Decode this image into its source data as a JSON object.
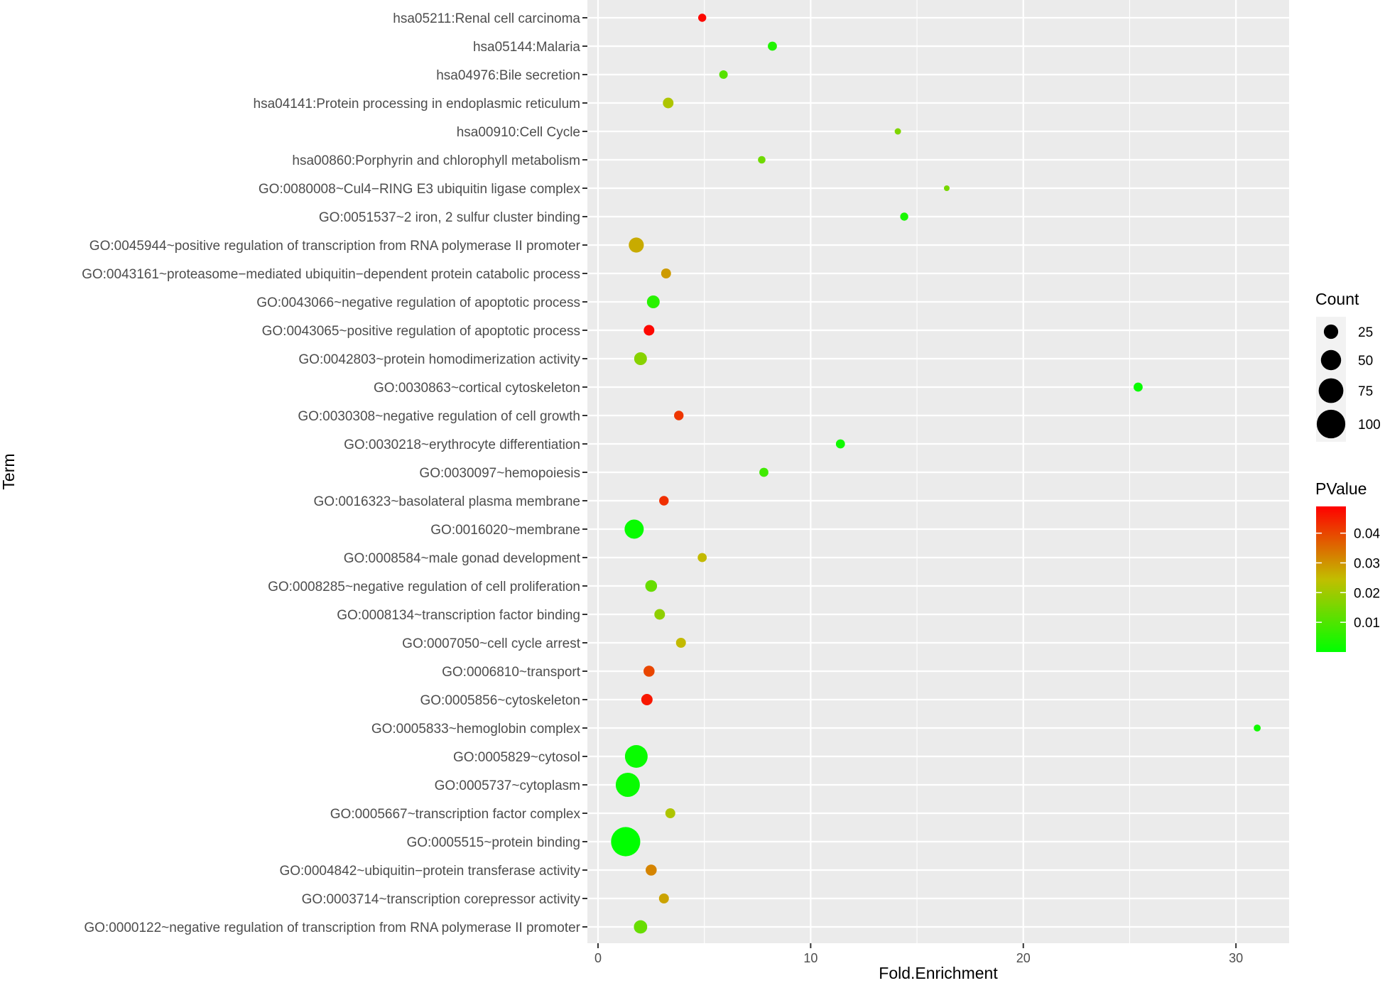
{
  "chart_data": {
    "type": "scatter",
    "xlabel": "Fold.Enrichment",
    "ylabel": "Term",
    "xlim": [
      -0.5,
      32.5
    ],
    "x_ticks": [
      "0",
      "10",
      "20",
      "30"
    ],
    "x_tick_values": [
      0,
      10,
      20,
      30
    ],
    "grid": true,
    "terms": [
      "hsa05211:Renal cell carcinoma",
      "hsa05144:Malaria",
      "hsa04976:Bile secretion",
      "hsa04141:Protein processing in endoplasmic reticulum",
      "hsa00910:Cell Cycle",
      "hsa00860:Porphyrin and chlorophyll metabolism",
      "GO:0080008~Cul4−RING E3 ubiquitin ligase complex",
      "GO:0051537~2 iron, 2 sulfur cluster binding",
      "GO:0045944~positive regulation of transcription from RNA polymerase II promoter",
      "GO:0043161~proteasome−mediated ubiquitin−dependent protein catabolic process",
      "GO:0043066~negative regulation of apoptotic process",
      "GO:0043065~positive regulation of apoptotic process",
      "GO:0042803~protein homodimerization activity",
      "GO:0030863~cortical cytoskeleton",
      "GO:0030308~negative regulation of cell growth",
      "GO:0030218~erythrocyte differentiation",
      "GO:0030097~hemopoiesis",
      "GO:0016323~basolateral plasma membrane",
      "GO:0016020~membrane",
      "GO:0008584~male gonad development",
      "GO:0008285~negative regulation of cell proliferation",
      "GO:0008134~transcription factor binding",
      "GO:0007050~cell cycle arrest",
      "GO:0006810~transport",
      "GO:0005856~cytoskeleton",
      "GO:0005833~hemoglobin complex",
      "GO:0005829~cytosol",
      "GO:0005737~cytoplasm",
      "GO:0005667~transcription factor complex",
      "GO:0005515~protein binding",
      "GO:0004842~ubiquitin−protein transferase activity",
      "GO:0003714~transcription corepressor activity",
      "GO:0000122~negative regulation of transcription from RNA polymerase II promoter"
    ],
    "fold_enrichment": [
      4.9,
      8.2,
      5.9,
      3.3,
      14.1,
      7.7,
      16.4,
      14.4,
      1.8,
      3.2,
      2.6,
      2.4,
      2.0,
      25.4,
      3.8,
      11.4,
      7.8,
      3.1,
      1.7,
      4.9,
      2.5,
      2.9,
      3.9,
      2.4,
      2.3,
      31.0,
      1.8,
      1.4,
      3.4,
      1.3,
      2.5,
      3.1,
      2.0
    ],
    "count": [
      8,
      10,
      9,
      14,
      5,
      7,
      4,
      8,
      28,
      12,
      20,
      14,
      20,
      10,
      11,
      10,
      10,
      11,
      45,
      10,
      17,
      14,
      12,
      15,
      16,
      6,
      63,
      71,
      12,
      105,
      15,
      12,
      22
    ],
    "pvalue": [
      0.048,
      0.004,
      0.011,
      0.022,
      0.016,
      0.014,
      0.015,
      0.003,
      0.027,
      0.029,
      0.005,
      0.048,
      0.017,
      0.001,
      0.042,
      0.002,
      0.008,
      0.043,
      0.001,
      0.025,
      0.013,
      0.018,
      0.025,
      0.04,
      0.046,
      0.002,
      0.001,
      0.001,
      0.022,
      0.0,
      0.032,
      0.028,
      0.013
    ],
    "size_legend": {
      "title": "Count",
      "labels": [
        "25",
        "50",
        "75",
        "100"
      ],
      "values": [
        25,
        50,
        75,
        100
      ]
    },
    "color_legend": {
      "title": "PValue",
      "labels": [
        "0.04",
        "0.03",
        "0.02",
        "0.01"
      ],
      "values": [
        0.04,
        0.03,
        0.02,
        0.01
      ],
      "range": [
        0.0,
        0.049
      ],
      "low_color": "#00FF00",
      "high_color": "#FF0000"
    },
    "colors": {
      "panel_background": "#EBEBEB",
      "grid_major": "#FFFFFF",
      "axis_text": "#4D4D4D",
      "title_text": "#000000"
    }
  }
}
